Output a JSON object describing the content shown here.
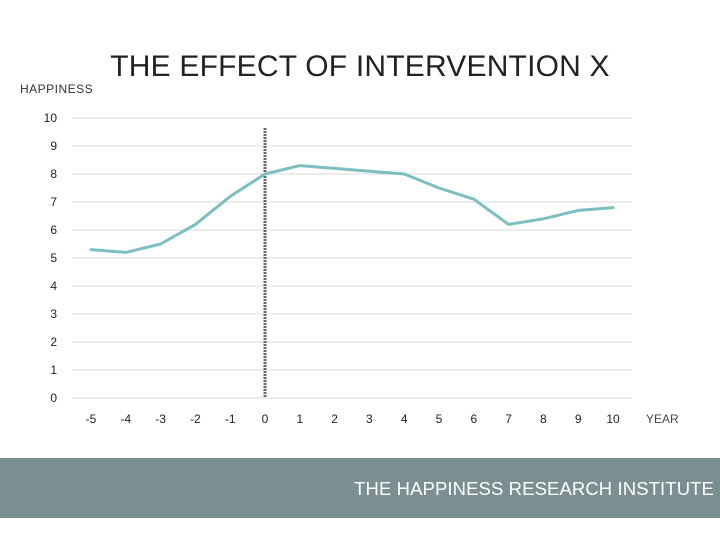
{
  "chart_data": {
    "type": "line",
    "title": "THE EFFECT OF INTERVENTION X",
    "ylabel": "HAPPINESS",
    "xlabel": "YEAR",
    "x": [
      -5,
      -4,
      -3,
      -2,
      -1,
      0,
      1,
      2,
      3,
      4,
      5,
      6,
      7,
      8,
      9,
      10
    ],
    "x_tick_labels": [
      "-5",
      "-4",
      "-3",
      "-2",
      "-1",
      "0",
      "1",
      "2",
      "3",
      "4",
      "5",
      "6",
      "7",
      "8",
      "9",
      "10"
    ],
    "y_ticks": [
      0,
      1,
      2,
      3,
      4,
      5,
      6,
      7,
      8,
      9,
      10
    ],
    "y_tick_labels": [
      "0",
      "1",
      "2",
      "3",
      "4",
      "5",
      "6",
      "7",
      "8",
      "9",
      "10"
    ],
    "ylim": [
      0,
      10
    ],
    "grid": true,
    "series": [
      {
        "name": "Happiness",
        "values": [
          5.3,
          5.2,
          5.5,
          6.2,
          7.2,
          8.0,
          8.3,
          8.2,
          8.1,
          8.0,
          7.5,
          7.1,
          6.2,
          6.4,
          6.7,
          6.8
        ],
        "color": "#7dbfc1"
      }
    ],
    "intervention_x": 0,
    "intervention_color": "#666666"
  },
  "footer": {
    "text": "THE HAPPINESS RESEARCH INSTITUTE",
    "background": "#7b8e92"
  }
}
